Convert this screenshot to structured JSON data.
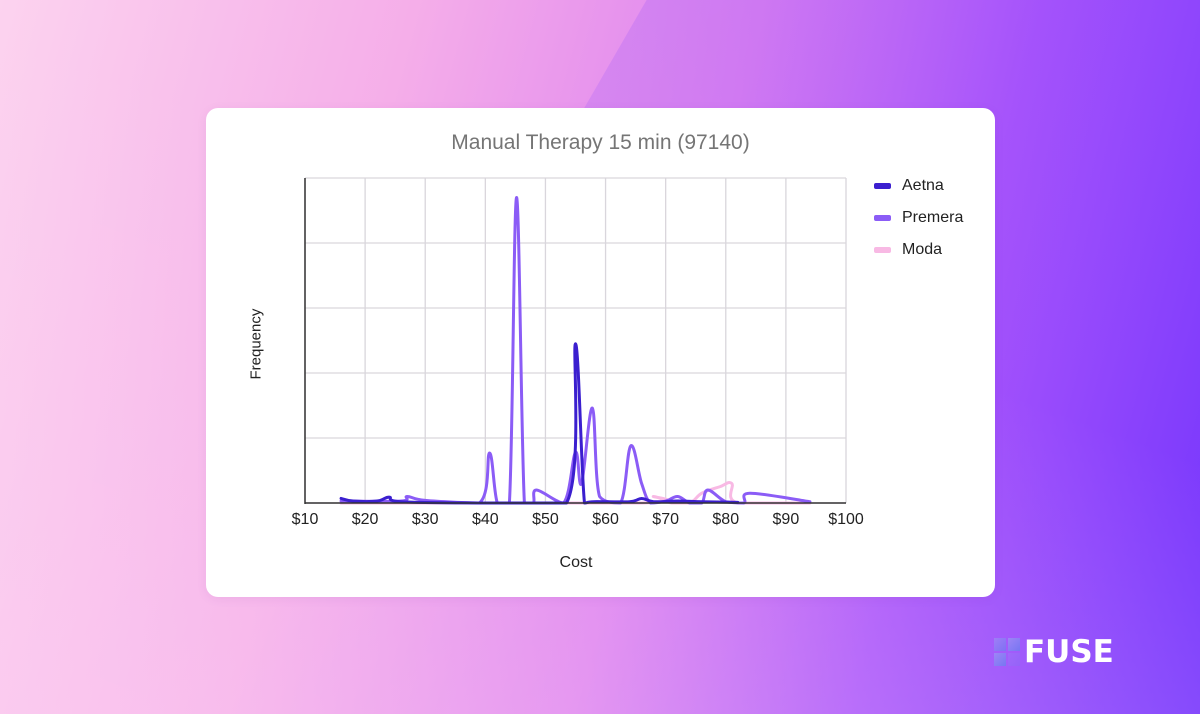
{
  "card": {
    "title": "Manual Therapy 15 min (97140)"
  },
  "brand": {
    "name": "FUSE"
  },
  "chart_data": {
    "type": "line",
    "title": "Manual Therapy 15 min (97140)",
    "xlabel": "Cost",
    "ylabel": "Frequency",
    "xlim": [
      10,
      100
    ],
    "ylim": [
      0,
      5
    ],
    "x_tick_labels": [
      "$10",
      "$20",
      "$30",
      "$40",
      "$50",
      "$60",
      "$70",
      "$80",
      "$90",
      "$100"
    ],
    "y_tick_labels": [],
    "grid": true,
    "legend_position": "right",
    "smooth": true,
    "series": [
      {
        "name": "Aetna",
        "color": "#3b1fcf",
        "points": [
          [
            16,
            0.07
          ],
          [
            18,
            0.03
          ],
          [
            22,
            0.03
          ],
          [
            24,
            0.09
          ],
          [
            26,
            0.02
          ],
          [
            40,
            0.0
          ],
          [
            53.5,
            0.0
          ],
          [
            55,
            2.45
          ],
          [
            56.5,
            0.0
          ],
          [
            58,
            0.02
          ],
          [
            64,
            0.02
          ],
          [
            66,
            0.07
          ],
          [
            68,
            0.02
          ],
          [
            72,
            0.03
          ],
          [
            76,
            0.02
          ],
          [
            82,
            0.01
          ]
        ]
      },
      {
        "name": "Premera",
        "color": "#8b5cf6",
        "points": [
          [
            16,
            0.03
          ],
          [
            26,
            0.03
          ],
          [
            27,
            0.1
          ],
          [
            30,
            0.04
          ],
          [
            39,
            0.0
          ],
          [
            40.7,
            0.77
          ],
          [
            42,
            0.0
          ],
          [
            44,
            0.0
          ],
          [
            45.2,
            4.7
          ],
          [
            46.5,
            0.0
          ],
          [
            48,
            0.0
          ],
          [
            48.5,
            0.2
          ],
          [
            53,
            0.0
          ],
          [
            55,
            0.78
          ],
          [
            56,
            0.3
          ],
          [
            57.8,
            1.46
          ],
          [
            59,
            0.1
          ],
          [
            62.5,
            0.0
          ],
          [
            64.2,
            0.88
          ],
          [
            66,
            0.3
          ],
          [
            67.5,
            0.0
          ],
          [
            70,
            0.03
          ],
          [
            72,
            0.1
          ],
          [
            74,
            0.0
          ],
          [
            76,
            0.0
          ],
          [
            77,
            0.2
          ],
          [
            80,
            0.02
          ],
          [
            83,
            0.0
          ],
          [
            84,
            0.15
          ],
          [
            94,
            0.02
          ]
        ]
      },
      {
        "name": "Moda",
        "color": "#f8b9e4",
        "points": [
          [
            16,
            0.0
          ],
          [
            66,
            0.0
          ],
          [
            68,
            0.1
          ],
          [
            71,
            0.0
          ],
          [
            74,
            0.0
          ],
          [
            76,
            0.15
          ],
          [
            79,
            0.25
          ],
          [
            81,
            0.3
          ],
          [
            82,
            0.0
          ],
          [
            94,
            0.0
          ]
        ]
      }
    ]
  }
}
